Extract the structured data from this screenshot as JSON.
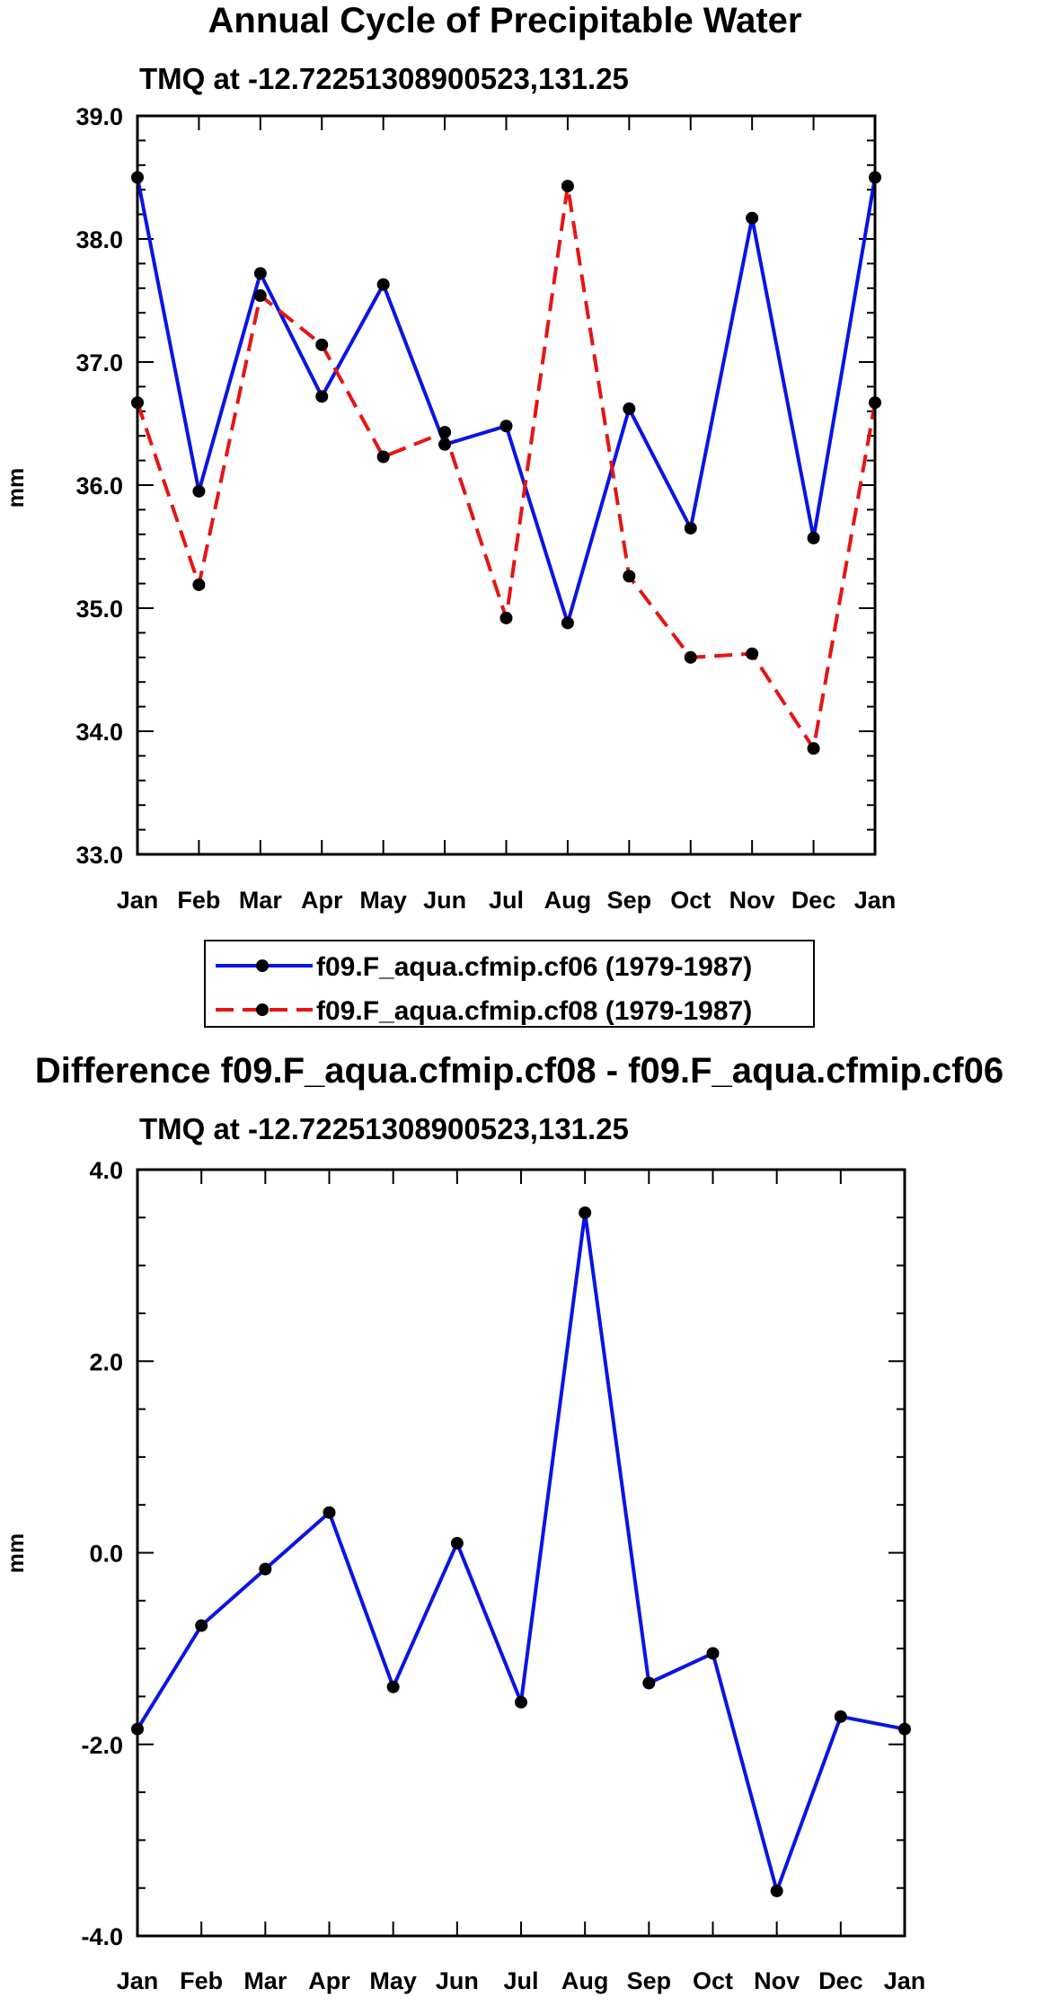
{
  "chart_data": [
    {
      "type": "line",
      "title": "Annual Cycle of Precipitable Water",
      "subtitle": "TMQ at -12.72251308900523,131.25",
      "ylabel": "mm",
      "xlabel": "",
      "categories": [
        "Jan",
        "Feb",
        "Mar",
        "Apr",
        "May",
        "Jun",
        "Jul",
        "Aug",
        "Sep",
        "Oct",
        "Nov",
        "Dec",
        "Jan"
      ],
      "ylim": [
        33.0,
        39.0
      ],
      "yticks": [
        "33.0",
        "34.0",
        "35.0",
        "36.0",
        "37.0",
        "38.0",
        "39.0"
      ],
      "yticks_values": [
        33,
        34,
        35,
        36,
        37,
        38,
        39
      ],
      "series": [
        {
          "name": "f09.F_aqua.cfmip.cf06 (1979-1987)",
          "color": "#0a14e6",
          "dash": "solid",
          "values": [
            38.5,
            35.95,
            37.72,
            36.72,
            37.63,
            36.33,
            36.48,
            34.88,
            36.62,
            35.65,
            38.17,
            35.57,
            38.5
          ]
        },
        {
          "name": "f09.F_aqua.cfmip.cf08 (1979-1987)",
          "color": "#e61414",
          "dash": "dashed",
          "values": [
            36.67,
            35.19,
            37.54,
            37.14,
            36.23,
            36.43,
            34.92,
            38.43,
            35.26,
            34.6,
            34.63,
            33.86,
            36.67
          ]
        }
      ],
      "legend": {
        "position": "bottom-center",
        "entries": [
          "f09.F_aqua.cfmip.cf06 (1979-1987)",
          "f09.F_aqua.cfmip.cf08 (1979-1987)"
        ]
      }
    },
    {
      "type": "line",
      "title": "Difference f09.F_aqua.cfmip.cf08 - f09.F_aqua.cfmip.cf06",
      "subtitle": "TMQ at -12.72251308900523,131.25",
      "ylabel": "mm",
      "xlabel": "",
      "categories": [
        "Jan",
        "Feb",
        "Mar",
        "Apr",
        "May",
        "Jun",
        "Jul",
        "Aug",
        "Sep",
        "Oct",
        "Nov",
        "Dec",
        "Jan"
      ],
      "ylim": [
        -4.0,
        4.0
      ],
      "yticks": [
        "-4.0",
        "-2.0",
        "0.0",
        "2.0",
        "4.0"
      ],
      "yticks_values": [
        -4,
        -2,
        0,
        2,
        4
      ],
      "series": [
        {
          "name": "difference",
          "color": "#0a14e6",
          "dash": "solid",
          "values": [
            -1.84,
            -0.76,
            -0.17,
            0.42,
            -1.4,
            0.1,
            -1.56,
            3.55,
            -1.36,
            -1.05,
            -3.53,
            -1.71,
            -1.84
          ]
        }
      ]
    }
  ]
}
